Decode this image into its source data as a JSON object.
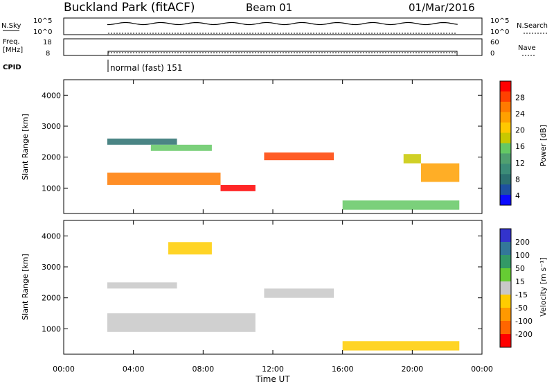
{
  "header": {
    "title": "Buckland Park (fitACF)",
    "beam": "Beam 01",
    "date": "01/Mar/2016"
  },
  "strip_panels": {
    "nsky_label": "N.Sky",
    "nsky_ticks": [
      "10^5",
      "10^0"
    ],
    "nsearch_label": "N.Search",
    "nsearch_ticks": [
      "10^5",
      "10^0"
    ],
    "freq_label_line1": "Freq.",
    "freq_label_line2": "[MHz]",
    "freq_ticks": [
      "18",
      "8"
    ],
    "nave_label": "Nave",
    "nave_ticks": [
      "60",
      "0"
    ],
    "cpid_label": "CPID",
    "cpid_value": "normal (fast) 151"
  },
  "colorbars": {
    "power": {
      "label": "Power [dB]",
      "ticks": [
        "28",
        "24",
        "20",
        "16",
        "12",
        "8",
        "4"
      ],
      "colors": [
        "#ff0000",
        "#ff4000",
        "#ff7a00",
        "#ffa000",
        "#ffc800",
        "#c8c800",
        "#64c864",
        "#50a070",
        "#3c8c78",
        "#2c7070",
        "#1e50a0",
        "#0a0aff"
      ]
    },
    "velocity": {
      "label": "Velocity [m s⁻¹]",
      "ticks": [
        "200",
        "100",
        "50",
        "15",
        "-15",
        "-50",
        "-100",
        "-200"
      ],
      "colors": [
        "#3333cc",
        "#337799",
        "#339966",
        "#66cc33",
        "#c8c8c8",
        "#ffcc00",
        "#ff9900",
        "#ff6600",
        "#ff0000"
      ]
    }
  },
  "chart_data": [
    {
      "type": "heatmap",
      "name": "power",
      "ylabel": "Slant Range [km]",
      "yticks": [
        "4000",
        "3000",
        "2000",
        "1000"
      ],
      "ylim": [
        180,
        4500
      ],
      "xlim": [
        0,
        24
      ],
      "data_start_hour": 2.5,
      "data_end_hour": 22.7,
      "data_gap_hour": 16.0,
      "bands": [
        {
          "range_km": [
            2600,
            2400
          ],
          "start": 2.5,
          "end": 6.5,
          "power_db": 8
        },
        {
          "range_km": [
            2400,
            2200
          ],
          "start": 5.0,
          "end": 8.5,
          "power_db": 14
        },
        {
          "range_km": [
            1500,
            1100
          ],
          "start": 2.5,
          "end": 9.0,
          "power_db": 24
        },
        {
          "range_km": [
            1100,
            900
          ],
          "start": 9.0,
          "end": 11.0,
          "power_db": 28
        },
        {
          "range_km": [
            2150,
            1900
          ],
          "start": 11.5,
          "end": 15.5,
          "power_db": 26
        },
        {
          "range_km": [
            2100,
            1800
          ],
          "start": 19.5,
          "end": 20.5,
          "power_db": 18
        },
        {
          "range_km": [
            1800,
            1200
          ],
          "start": 20.5,
          "end": 22.7,
          "power_db": 22
        },
        {
          "range_km": [
            600,
            300
          ],
          "start": 16.0,
          "end": 22.7,
          "power_db": 14
        }
      ]
    },
    {
      "type": "heatmap",
      "name": "velocity",
      "ylabel": "Slant Range [km]",
      "yticks": [
        "4000",
        "3000",
        "2000",
        "1000"
      ],
      "ylim": [
        180,
        4500
      ],
      "xlabel": "Time UT",
      "xticks": [
        "00:00",
        "04:00",
        "08:00",
        "12:00",
        "16:00",
        "20:00",
        "00:00"
      ],
      "xlim": [
        0,
        24
      ],
      "bands": [
        {
          "range_km": [
            2500,
            2300
          ],
          "start": 2.5,
          "end": 6.5,
          "velocity": 0
        },
        {
          "range_km": [
            1500,
            900
          ],
          "start": 2.5,
          "end": 11.0,
          "velocity": 0
        },
        {
          "range_km": [
            2300,
            2000
          ],
          "start": 11.5,
          "end": 15.5,
          "velocity": 0
        },
        {
          "range_km": [
            3800,
            3400
          ],
          "start": 6.0,
          "end": 8.5,
          "velocity": -40
        },
        {
          "range_km": [
            600,
            300
          ],
          "start": 16.0,
          "end": 22.7,
          "velocity": -30
        }
      ]
    }
  ]
}
